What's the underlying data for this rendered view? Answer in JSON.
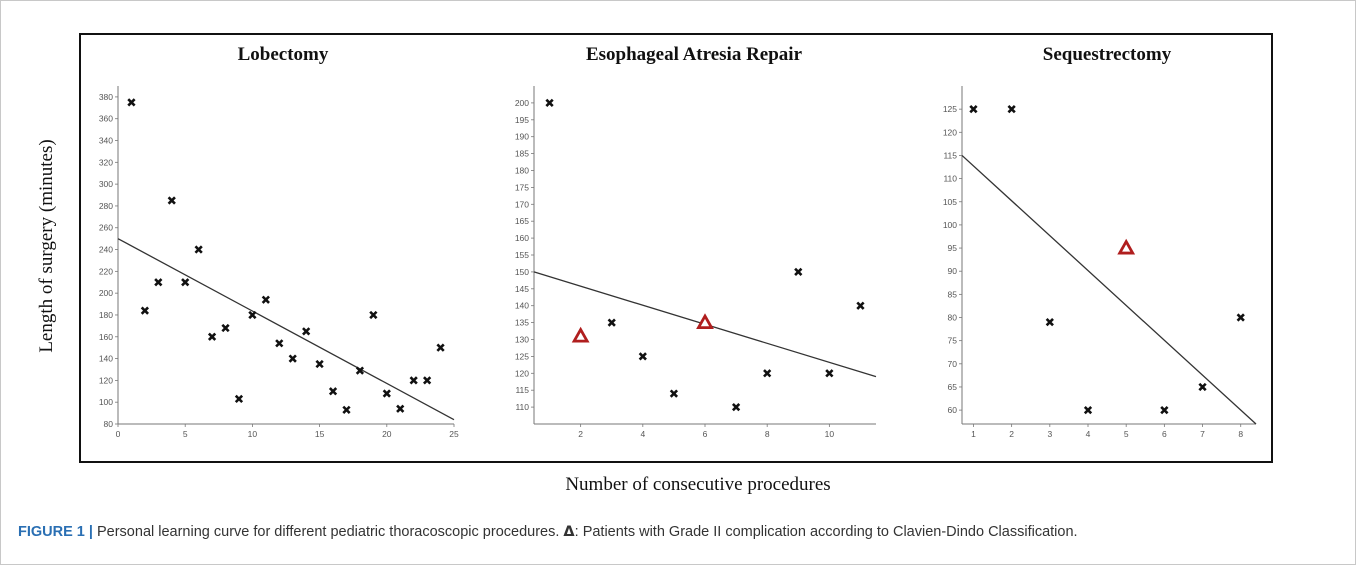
{
  "figure": {
    "ylabel": "Length of surgery (minutes)",
    "xlabel": "Number of consecutive procedures",
    "caption_lead": "FIGURE 1 |",
    "caption_text": " Personal learning curve for different pediatric thoracoscopic procedures. ",
    "caption_delta": "Δ",
    "caption_rest": ": Patients with Grade II complication according to Clavien-Dindo Classification.",
    "colors": {
      "cross": "#111111",
      "triangle": "#b01e1e",
      "trend": "#333333"
    }
  },
  "chart_data": [
    {
      "type": "scatter",
      "title": "Lobectomy",
      "xlim": [
        0,
        25
      ],
      "ylim": [
        80,
        390
      ],
      "x_ticks": [
        0,
        5,
        10,
        15,
        20,
        25
      ],
      "y_ticks": [
        80,
        100,
        120,
        140,
        160,
        180,
        200,
        220,
        240,
        260,
        280,
        300,
        320,
        340,
        360,
        380
      ],
      "grid": false,
      "points": [
        {
          "x": 1,
          "y": 375
        },
        {
          "x": 2,
          "y": 184
        },
        {
          "x": 3,
          "y": 210
        },
        {
          "x": 4,
          "y": 285
        },
        {
          "x": 5,
          "y": 210
        },
        {
          "x": 6,
          "y": 240
        },
        {
          "x": 7,
          "y": 160
        },
        {
          "x": 8,
          "y": 168
        },
        {
          "x": 9,
          "y": 103
        },
        {
          "x": 10,
          "y": 180
        },
        {
          "x": 11,
          "y": 194
        },
        {
          "x": 12,
          "y": 154
        },
        {
          "x": 13,
          "y": 140
        },
        {
          "x": 14,
          "y": 165
        },
        {
          "x": 15,
          "y": 135
        },
        {
          "x": 16,
          "y": 110
        },
        {
          "x": 17,
          "y": 93
        },
        {
          "x": 18,
          "y": 129
        },
        {
          "x": 19,
          "y": 180
        },
        {
          "x": 20,
          "y": 108
        },
        {
          "x": 21,
          "y": 94
        },
        {
          "x": 22,
          "y": 120
        },
        {
          "x": 23,
          "y": 120
        },
        {
          "x": 24,
          "y": 150
        }
      ],
      "complications": [],
      "trendline": {
        "x": [
          0,
          25
        ],
        "y": [
          250,
          84
        ]
      }
    },
    {
      "type": "scatter",
      "title": "Esophageal Atresia Repair",
      "xlim": [
        0.5,
        11.5
      ],
      "ylim": [
        105,
        205
      ],
      "x_ticks": [
        2,
        4,
        6,
        8,
        10
      ],
      "y_ticks": [
        110,
        115,
        120,
        125,
        130,
        135,
        140,
        145,
        150,
        155,
        160,
        165,
        170,
        175,
        180,
        185,
        190,
        195,
        200
      ],
      "grid": false,
      "points": [
        {
          "x": 1,
          "y": 200
        },
        {
          "x": 3,
          "y": 135
        },
        {
          "x": 4,
          "y": 125
        },
        {
          "x": 5,
          "y": 114
        },
        {
          "x": 7,
          "y": 110
        },
        {
          "x": 8,
          "y": 120
        },
        {
          "x": 9,
          "y": 150
        },
        {
          "x": 10,
          "y": 120
        },
        {
          "x": 11,
          "y": 140
        }
      ],
      "complications": [
        {
          "x": 2,
          "y": 131
        },
        {
          "x": 6,
          "y": 135
        }
      ],
      "trendline": {
        "x": [
          0.5,
          11.5
        ],
        "y": [
          150,
          119
        ]
      }
    },
    {
      "type": "scatter",
      "title": "Sequestrectomy",
      "xlim": [
        0.7,
        8.4
      ],
      "ylim": [
        57,
        130
      ],
      "x_ticks": [
        1,
        2,
        3,
        4,
        5,
        6,
        7,
        8
      ],
      "y_ticks": [
        60,
        65,
        70,
        75,
        80,
        85,
        90,
        95,
        100,
        105,
        110,
        115,
        120,
        125
      ],
      "grid": false,
      "points": [
        {
          "x": 1,
          "y": 125
        },
        {
          "x": 2,
          "y": 125
        },
        {
          "x": 3,
          "y": 79
        },
        {
          "x": 4,
          "y": 60
        },
        {
          "x": 6,
          "y": 60
        },
        {
          "x": 7,
          "y": 65
        },
        {
          "x": 8,
          "y": 80
        }
      ],
      "complications": [
        {
          "x": 5,
          "y": 95
        }
      ],
      "trendline": {
        "x": [
          0.7,
          8.4
        ],
        "y": [
          115,
          57
        ]
      }
    }
  ]
}
